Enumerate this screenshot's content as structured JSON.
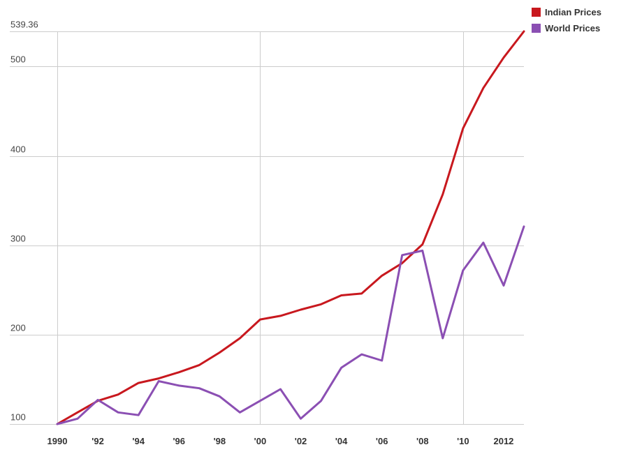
{
  "chart_data": {
    "type": "line",
    "x": [
      1990,
      1991,
      1992,
      1993,
      1994,
      1995,
      1996,
      1997,
      1998,
      1999,
      2000,
      2001,
      2002,
      2003,
      2004,
      2005,
      2006,
      2007,
      2008,
      2009,
      2010,
      2011,
      2012,
      2013
    ],
    "x_tick_values": [
      1990,
      1992,
      1994,
      1996,
      1998,
      2000,
      2002,
      2004,
      2006,
      2008,
      2010,
      2012
    ],
    "x_tick_labels": [
      "1990",
      "'92",
      "'94",
      "'96",
      "'98",
      "'00",
      "'02",
      "'04",
      "'06",
      "'08",
      "'10",
      "2012"
    ],
    "y_tick_values": [
      100,
      200,
      300,
      400,
      500,
      539.36
    ],
    "y_tick_labels": [
      "100",
      "200",
      "300",
      "400",
      "500",
      "539.36"
    ],
    "xlim": [
      1990,
      2013
    ],
    "ylim": [
      100,
      539.36
    ],
    "grid": true,
    "legend_position": "top-right",
    "series": [
      {
        "name": "Indian Prices",
        "color": "#c8181e",
        "values": [
          100,
          113,
          126,
          133,
          146,
          151,
          158,
          166,
          180,
          196,
          217,
          221,
          228,
          234,
          244,
          246,
          266,
          280,
          301,
          357,
          431,
          476,
          510,
          539.36
        ]
      },
      {
        "name": "World Prices",
        "color": "#8b4fb3",
        "values": [
          100,
          106,
          127,
          113,
          110,
          148,
          143,
          140,
          131,
          113,
          126,
          139,
          106,
          126,
          163,
          178,
          171,
          289,
          294,
          196,
          272,
          303,
          255,
          321
        ]
      }
    ]
  }
}
